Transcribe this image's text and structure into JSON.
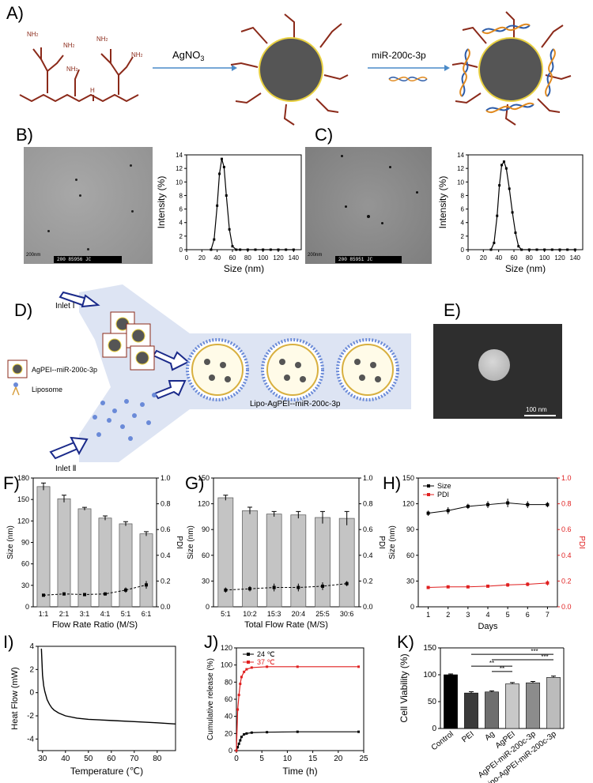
{
  "panels": {
    "A": "A)",
    "B": "B)",
    "C": "C)",
    "D": "D)",
    "E": "E)",
    "F": "F)",
    "G": "G)",
    "H": "H)",
    "I": "I)",
    "J": "J)",
    "K": "K)"
  },
  "schemeA": {
    "step1": "AgNO",
    "step1_sub": "3",
    "step2": "miR-200c-3p",
    "amine": "NH",
    "amine_sub": "2",
    "imine": "H"
  },
  "micrographs": {
    "B_scalebar": "200nm",
    "B_label": "200 85956  JC",
    "C_scalebar": "200nm",
    "C_label": "200 85951  JC",
    "E_scalebar": "100 nm"
  },
  "schemeD": {
    "inlet1": "Inlet Ⅰ",
    "inlet2": "Inlet Ⅱ",
    "legend1": "AgPEI--miR-200c-3p",
    "legend2": "Liposome",
    "product": "Lipo-AgPEI--miR-200c-3p"
  },
  "chart_data": [
    {
      "panel": "B",
      "type": "line",
      "xlabel": "Size (nm)",
      "ylabel": "Intensity (%)",
      "xlim": [
        0,
        150
      ],
      "ylim": [
        0,
        14
      ],
      "xticks": [
        0,
        20,
        40,
        60,
        80,
        100,
        120,
        140
      ],
      "yticks": [
        0,
        2,
        4,
        6,
        8,
        10,
        12,
        14
      ],
      "x": [
        32,
        36,
        40,
        43,
        46,
        49,
        52,
        56,
        60,
        65,
        70,
        80,
        90,
        100,
        110,
        120,
        130,
        140
      ],
      "y": [
        0,
        1.5,
        6.5,
        11.2,
        13.4,
        12.2,
        8,
        3,
        0.5,
        0,
        0,
        0,
        0,
        0,
        0,
        0,
        0,
        0
      ]
    },
    {
      "panel": "C",
      "type": "line",
      "xlabel": "Size (nm)",
      "ylabel": "Intensity (%)",
      "xlim": [
        0,
        150
      ],
      "ylim": [
        0,
        14
      ],
      "xticks": [
        0,
        20,
        40,
        60,
        80,
        100,
        120,
        140
      ],
      "yticks": [
        0,
        2,
        4,
        6,
        8,
        10,
        12,
        14
      ],
      "x": [
        30,
        34,
        38,
        41,
        44,
        47,
        50,
        54,
        58,
        62,
        66,
        70,
        80,
        90,
        100,
        110,
        120,
        130,
        140
      ],
      "y": [
        0,
        1,
        5,
        9.5,
        12.5,
        13,
        12,
        9,
        5.5,
        2.5,
        0.5,
        0,
        0,
        0,
        0,
        0,
        0,
        0,
        0
      ]
    },
    {
      "panel": "F",
      "type": "bar",
      "xlabel": "Flow Rate Ratio (M/S)",
      "ylabel": "Size (nm)",
      "y2label": "PDI",
      "categories": [
        "1:1",
        "2:1",
        "3:1",
        "4:1",
        "5:1",
        "6:1"
      ],
      "ylim": [
        0,
        180
      ],
      "yticks": [
        0,
        30,
        60,
        90,
        120,
        150,
        180
      ],
      "y2lim": [
        0,
        1.0
      ],
      "y2ticks": [
        "0.0",
        "0.2",
        "0.4",
        "0.6",
        "0.8",
        "1.0"
      ],
      "values": [
        168,
        151,
        137,
        124,
        116,
        102
      ],
      "errors": [
        5,
        5,
        2,
        3,
        3,
        3
      ],
      "pdi": [
        0.09,
        0.1,
        0.095,
        0.1,
        0.13,
        0.17
      ],
      "pdi_err": [
        0.01,
        0.012,
        0.01,
        0.012,
        0.02,
        0.03
      ]
    },
    {
      "panel": "G",
      "type": "bar",
      "xlabel": "Total Flow Rate (M/S)",
      "ylabel": "Size (nm)",
      "y2label": "PDI",
      "categories": [
        "5:1",
        "10:2",
        "15:3",
        "20:4",
        "25:5",
        "30:6"
      ],
      "ylim": [
        0,
        150
      ],
      "yticks": [
        0,
        30,
        60,
        90,
        120,
        150
      ],
      "y2lim": [
        0,
        1.0
      ],
      "y2ticks": [
        "0.0",
        "0.2",
        "0.4",
        "0.6",
        "0.8",
        "1.0"
      ],
      "values": [
        127,
        112,
        108,
        107,
        104,
        103
      ],
      "errors": [
        3,
        4,
        3,
        4,
        7,
        8
      ],
      "pdi": [
        0.13,
        0.14,
        0.15,
        0.15,
        0.16,
        0.18
      ],
      "pdi_err": [
        0.02,
        0.02,
        0.03,
        0.03,
        0.03,
        0.02
      ]
    },
    {
      "panel": "H",
      "type": "line",
      "xlabel": "Days",
      "ylabel": "Size (nm)",
      "y2label": "PDI",
      "x": [
        1,
        2,
        3,
        4,
        5,
        6,
        7
      ],
      "xlim": [
        0.5,
        7.5
      ],
      "ylim": [
        0,
        150
      ],
      "yticks": [
        0,
        30,
        60,
        90,
        120,
        150
      ],
      "y2lim": [
        0,
        1.0
      ],
      "y2ticks": [
        "0.0",
        "0.2",
        "0.4",
        "0.6",
        "0.8",
        "1.0"
      ],
      "series": [
        {
          "name": "Size",
          "values": [
            109,
            112,
            117,
            119,
            121,
            119,
            119
          ],
          "errors": [
            3,
            4,
            3,
            4,
            5,
            4,
            3
          ],
          "color": "#000000"
        },
        {
          "name": "PDI",
          "values": [
            0.15,
            0.155,
            0.155,
            0.16,
            0.17,
            0.175,
            0.185
          ],
          "errors": [
            0.01,
            0.01,
            0.01,
            0.01,
            0.015,
            0.015,
            0.02
          ],
          "color": "#e02020"
        }
      ]
    },
    {
      "panel": "I",
      "type": "line",
      "xlabel": "Temperature (℃)",
      "ylabel": "Heat Flow (mW)",
      "xlim": [
        28,
        88
      ],
      "ylim": [
        -5,
        4
      ],
      "xticks": [
        30,
        40,
        50,
        60,
        70,
        80
      ],
      "yticks": [
        -4,
        -2,
        0,
        2,
        4
      ],
      "x": [
        29.5,
        30,
        30.5,
        31,
        32,
        33,
        34,
        35,
        37,
        40,
        45,
        50,
        60,
        70,
        80,
        88
      ],
      "y": [
        3.8,
        1.5,
        0.6,
        0.1,
        -0.6,
        -1.0,
        -1.3,
        -1.5,
        -1.75,
        -2.0,
        -2.2,
        -2.3,
        -2.4,
        -2.5,
        -2.6,
        -2.7
      ]
    },
    {
      "panel": "J",
      "type": "line",
      "xlabel": "Time (h)",
      "ylabel": "Cumulative release (%)",
      "xlim": [
        0,
        25
      ],
      "ylim": [
        0,
        120
      ],
      "xticks": [
        0,
        5,
        10,
        15,
        20,
        25
      ],
      "yticks": [
        0,
        20,
        40,
        60,
        80,
        100,
        120
      ],
      "series": [
        {
          "name": "24 ℃",
          "color": "#000000",
          "x": [
            0,
            0.25,
            0.5,
            0.75,
            1,
            1.5,
            2,
            3,
            6,
            12,
            24
          ],
          "y": [
            0,
            4,
            8,
            12,
            16,
            19,
            20,
            21,
            21.5,
            22,
            22
          ]
        },
        {
          "name": "37 ℃",
          "color": "#e02020",
          "x": [
            0,
            0.25,
            0.5,
            0.75,
            1,
            1.5,
            2,
            3,
            6,
            12,
            24
          ],
          "y": [
            0,
            48,
            65,
            78,
            86,
            92,
            95,
            97,
            98,
            98,
            98
          ]
        }
      ]
    },
    {
      "panel": "K",
      "type": "bar",
      "ylabel": "Cell Viability (%)",
      "categories": [
        "Control",
        "PEI",
        "Ag",
        "AgPEI",
        "AgPEI-miR-200c-3p",
        "Lipo-AgPEI-miR-200c-3p"
      ],
      "ylim": [
        0,
        150
      ],
      "yticks": [
        0,
        50,
        100,
        150
      ],
      "values": [
        100,
        66,
        68,
        83,
        85,
        95
      ],
      "errors": [
        1.5,
        2.5,
        2,
        2.5,
        2.5,
        2.5
      ],
      "colors": [
        "#000000",
        "#3a3a3a",
        "#6e6e6e",
        "#c8c8c8",
        "#8c8c8c",
        "#bcbcbc"
      ],
      "significance": [
        {
          "label": "***",
          "from": 1,
          "to": 5
        },
        {
          "label": "***",
          "from": 2,
          "to": 5
        },
        {
          "label": "**",
          "from": 1,
          "to": 3
        },
        {
          "label": "**",
          "from": 2,
          "to": 3
        }
      ]
    }
  ]
}
